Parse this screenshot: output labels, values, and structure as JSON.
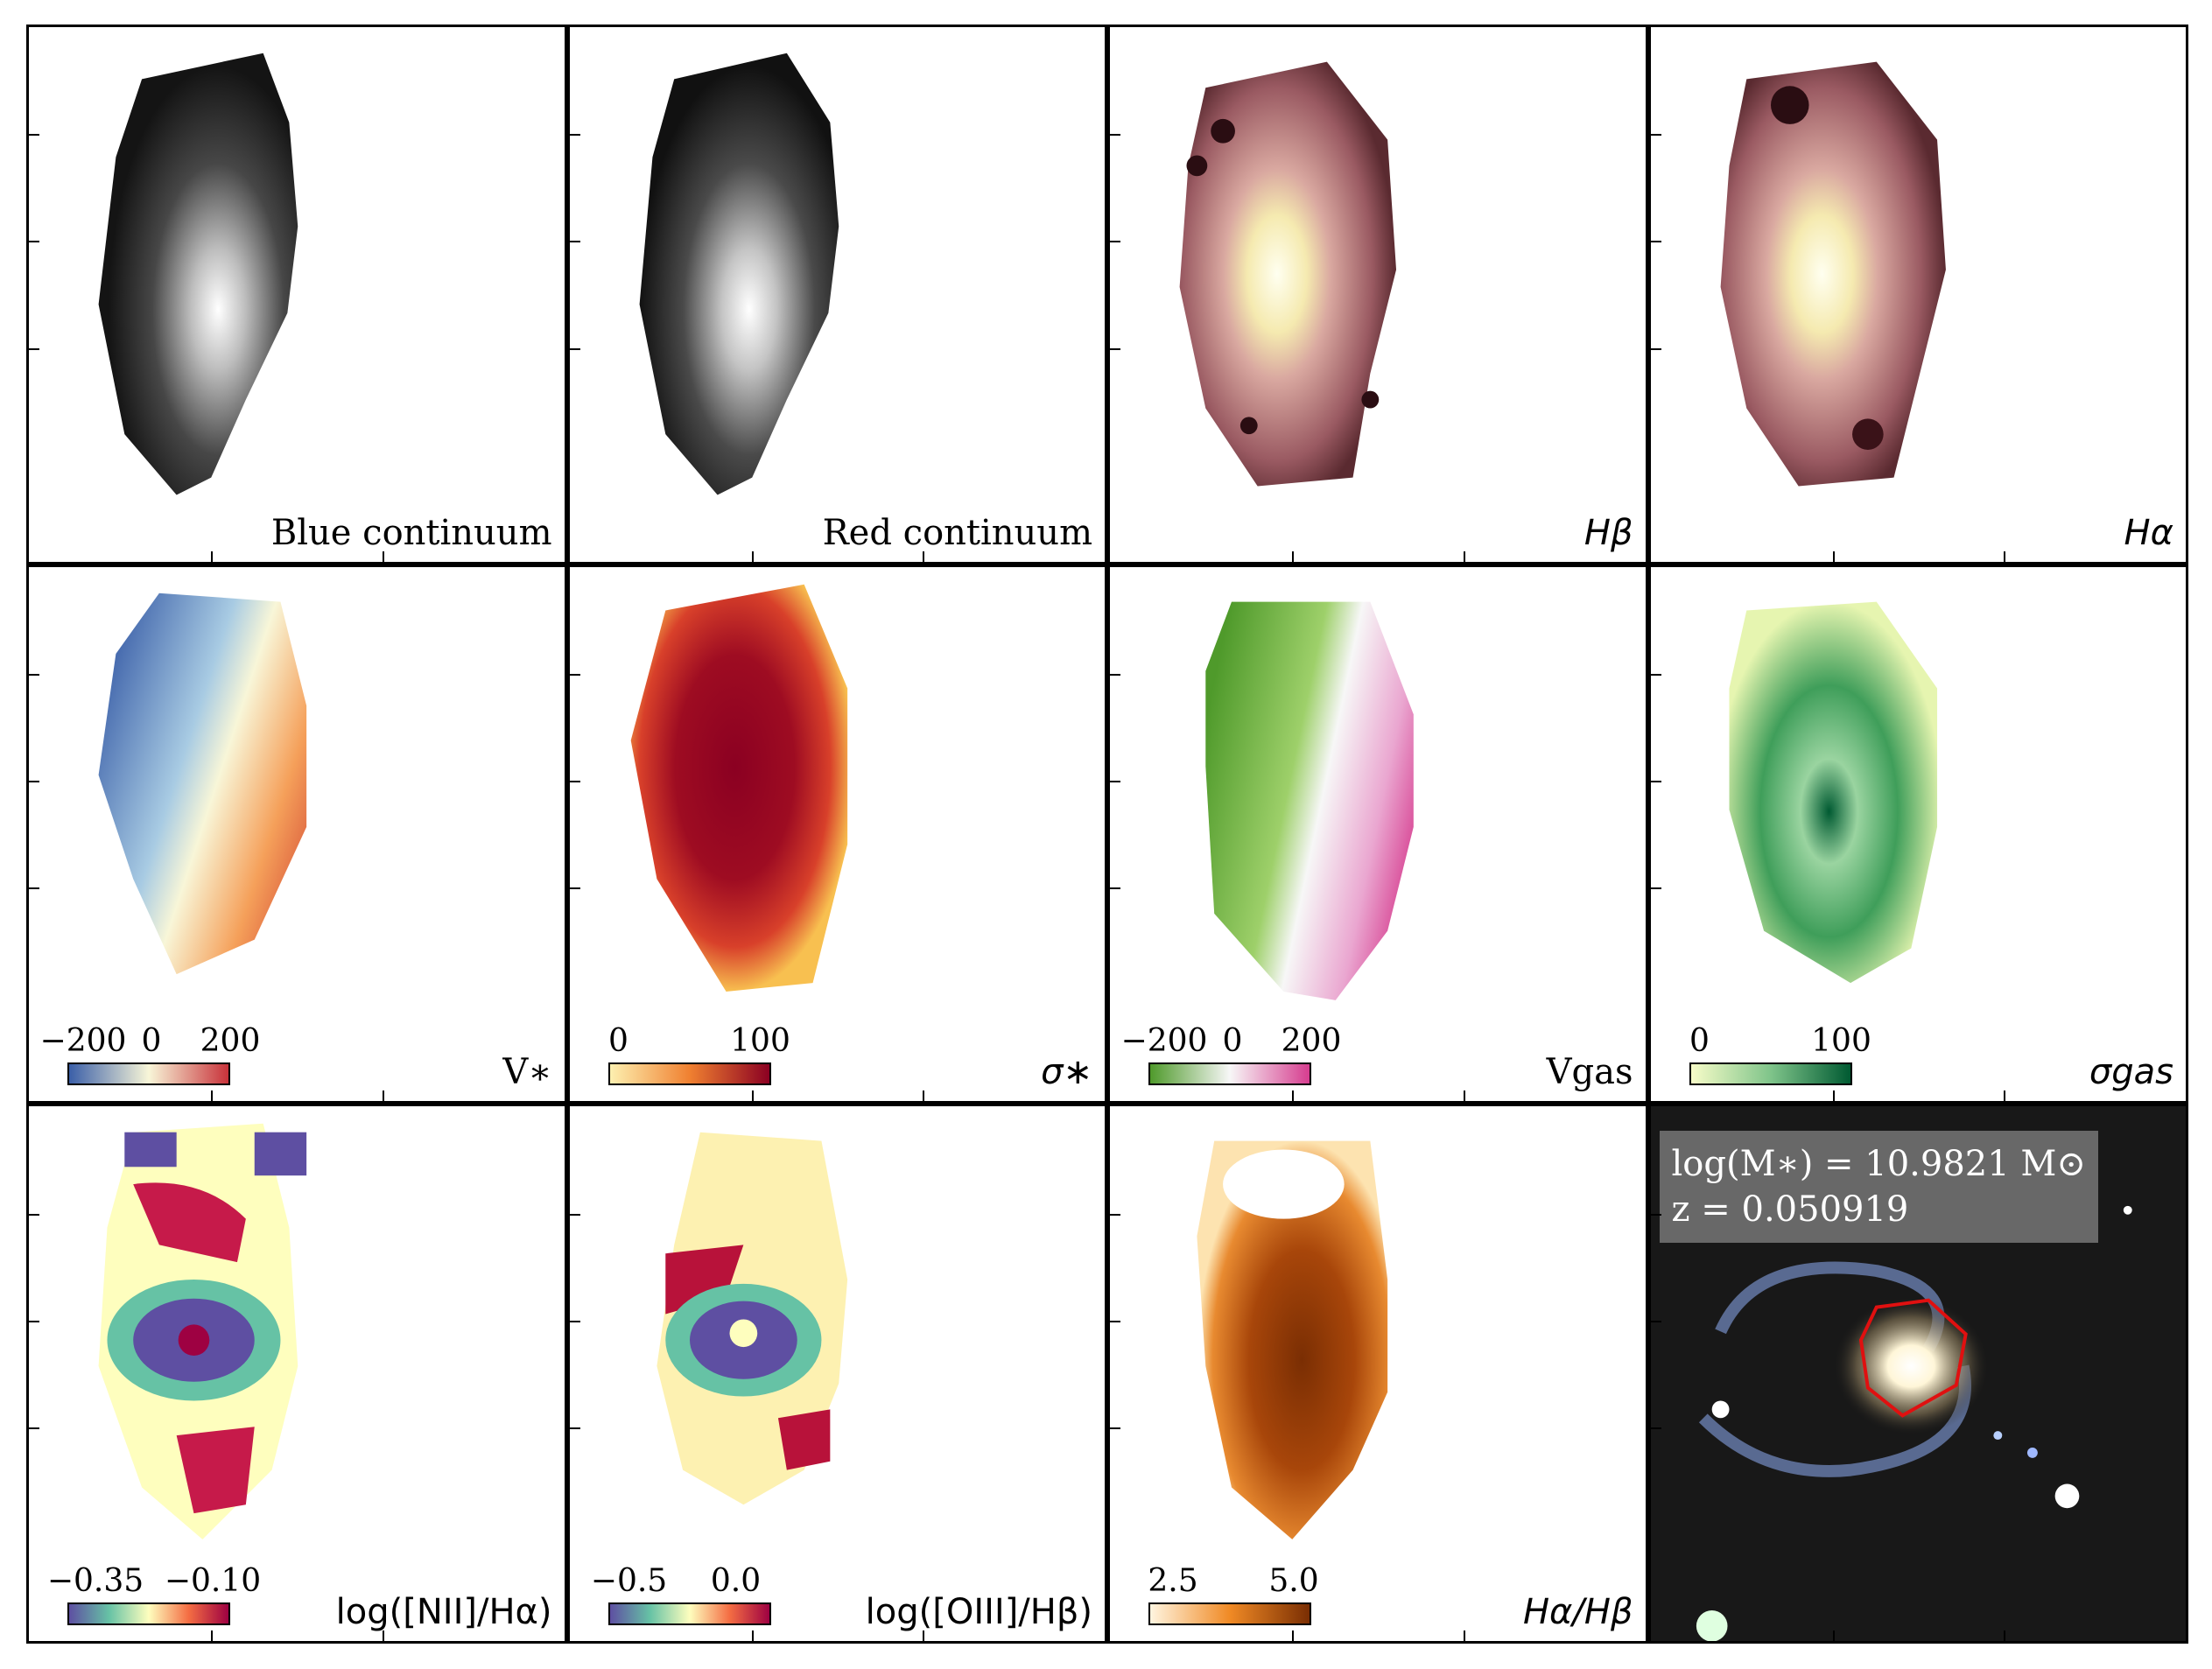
{
  "figure": {
    "panels": [
      {
        "id": "blue",
        "label": "Blue continuum"
      },
      {
        "id": "red",
        "label": "Red continuum"
      },
      {
        "id": "hbeta",
        "label": "Hβ"
      },
      {
        "id": "halpha",
        "label": "Hα"
      },
      {
        "id": "vstar",
        "label": "V∗",
        "colorbar": {
          "ticks": [
            "−200",
            "0",
            "200"
          ],
          "colors": [
            "#3b5fa8",
            "#f8f6d8",
            "#c8323a"
          ]
        }
      },
      {
        "id": "sigstar",
        "label": "σ∗",
        "colorbar": {
          "ticks": [
            "0",
            "100"
          ],
          "colors": [
            "#fdf0b0",
            "#f08030",
            "#8b0022"
          ]
        }
      },
      {
        "id": "vgas",
        "label": "Vgas",
        "colorbar": {
          "ticks": [
            "−200",
            "0",
            "200"
          ],
          "colors": [
            "#4f9a2b",
            "#f7f7f7",
            "#d63d8f"
          ]
        }
      },
      {
        "id": "siggas",
        "label": "σgas",
        "colorbar": {
          "ticks": [
            "0",
            "100"
          ],
          "colors": [
            "#f7fcc8",
            "#7fc48a",
            "#005a32"
          ]
        }
      },
      {
        "id": "n2ha",
        "label": "log([NII]/Hα)",
        "colorbar": {
          "ticks": [
            "−0.35",
            "−0.10"
          ],
          "colors": [
            "#5e4fa2",
            "#66c2a5",
            "#fefebe",
            "#f46d43",
            "#9e0142"
          ]
        }
      },
      {
        "id": "o3hb",
        "label": "log([OIII]/Hβ)",
        "colorbar": {
          "ticks": [
            "−0.5",
            "0.0"
          ],
          "colors": [
            "#5e4fa2",
            "#66c2a5",
            "#fefebe",
            "#f46d43",
            "#9e0142"
          ]
        }
      },
      {
        "id": "balmer",
        "label": "Hα/Hβ",
        "colorbar": {
          "ticks": [
            "2.5",
            "5.0"
          ],
          "colors": [
            "#fff5e0",
            "#f08a25",
            "#7a2e03"
          ]
        }
      },
      {
        "id": "image",
        "info": {
          "mass": "log(M∗) = 10.9821 M⊙",
          "z": "z = 0.050919"
        }
      }
    ]
  }
}
